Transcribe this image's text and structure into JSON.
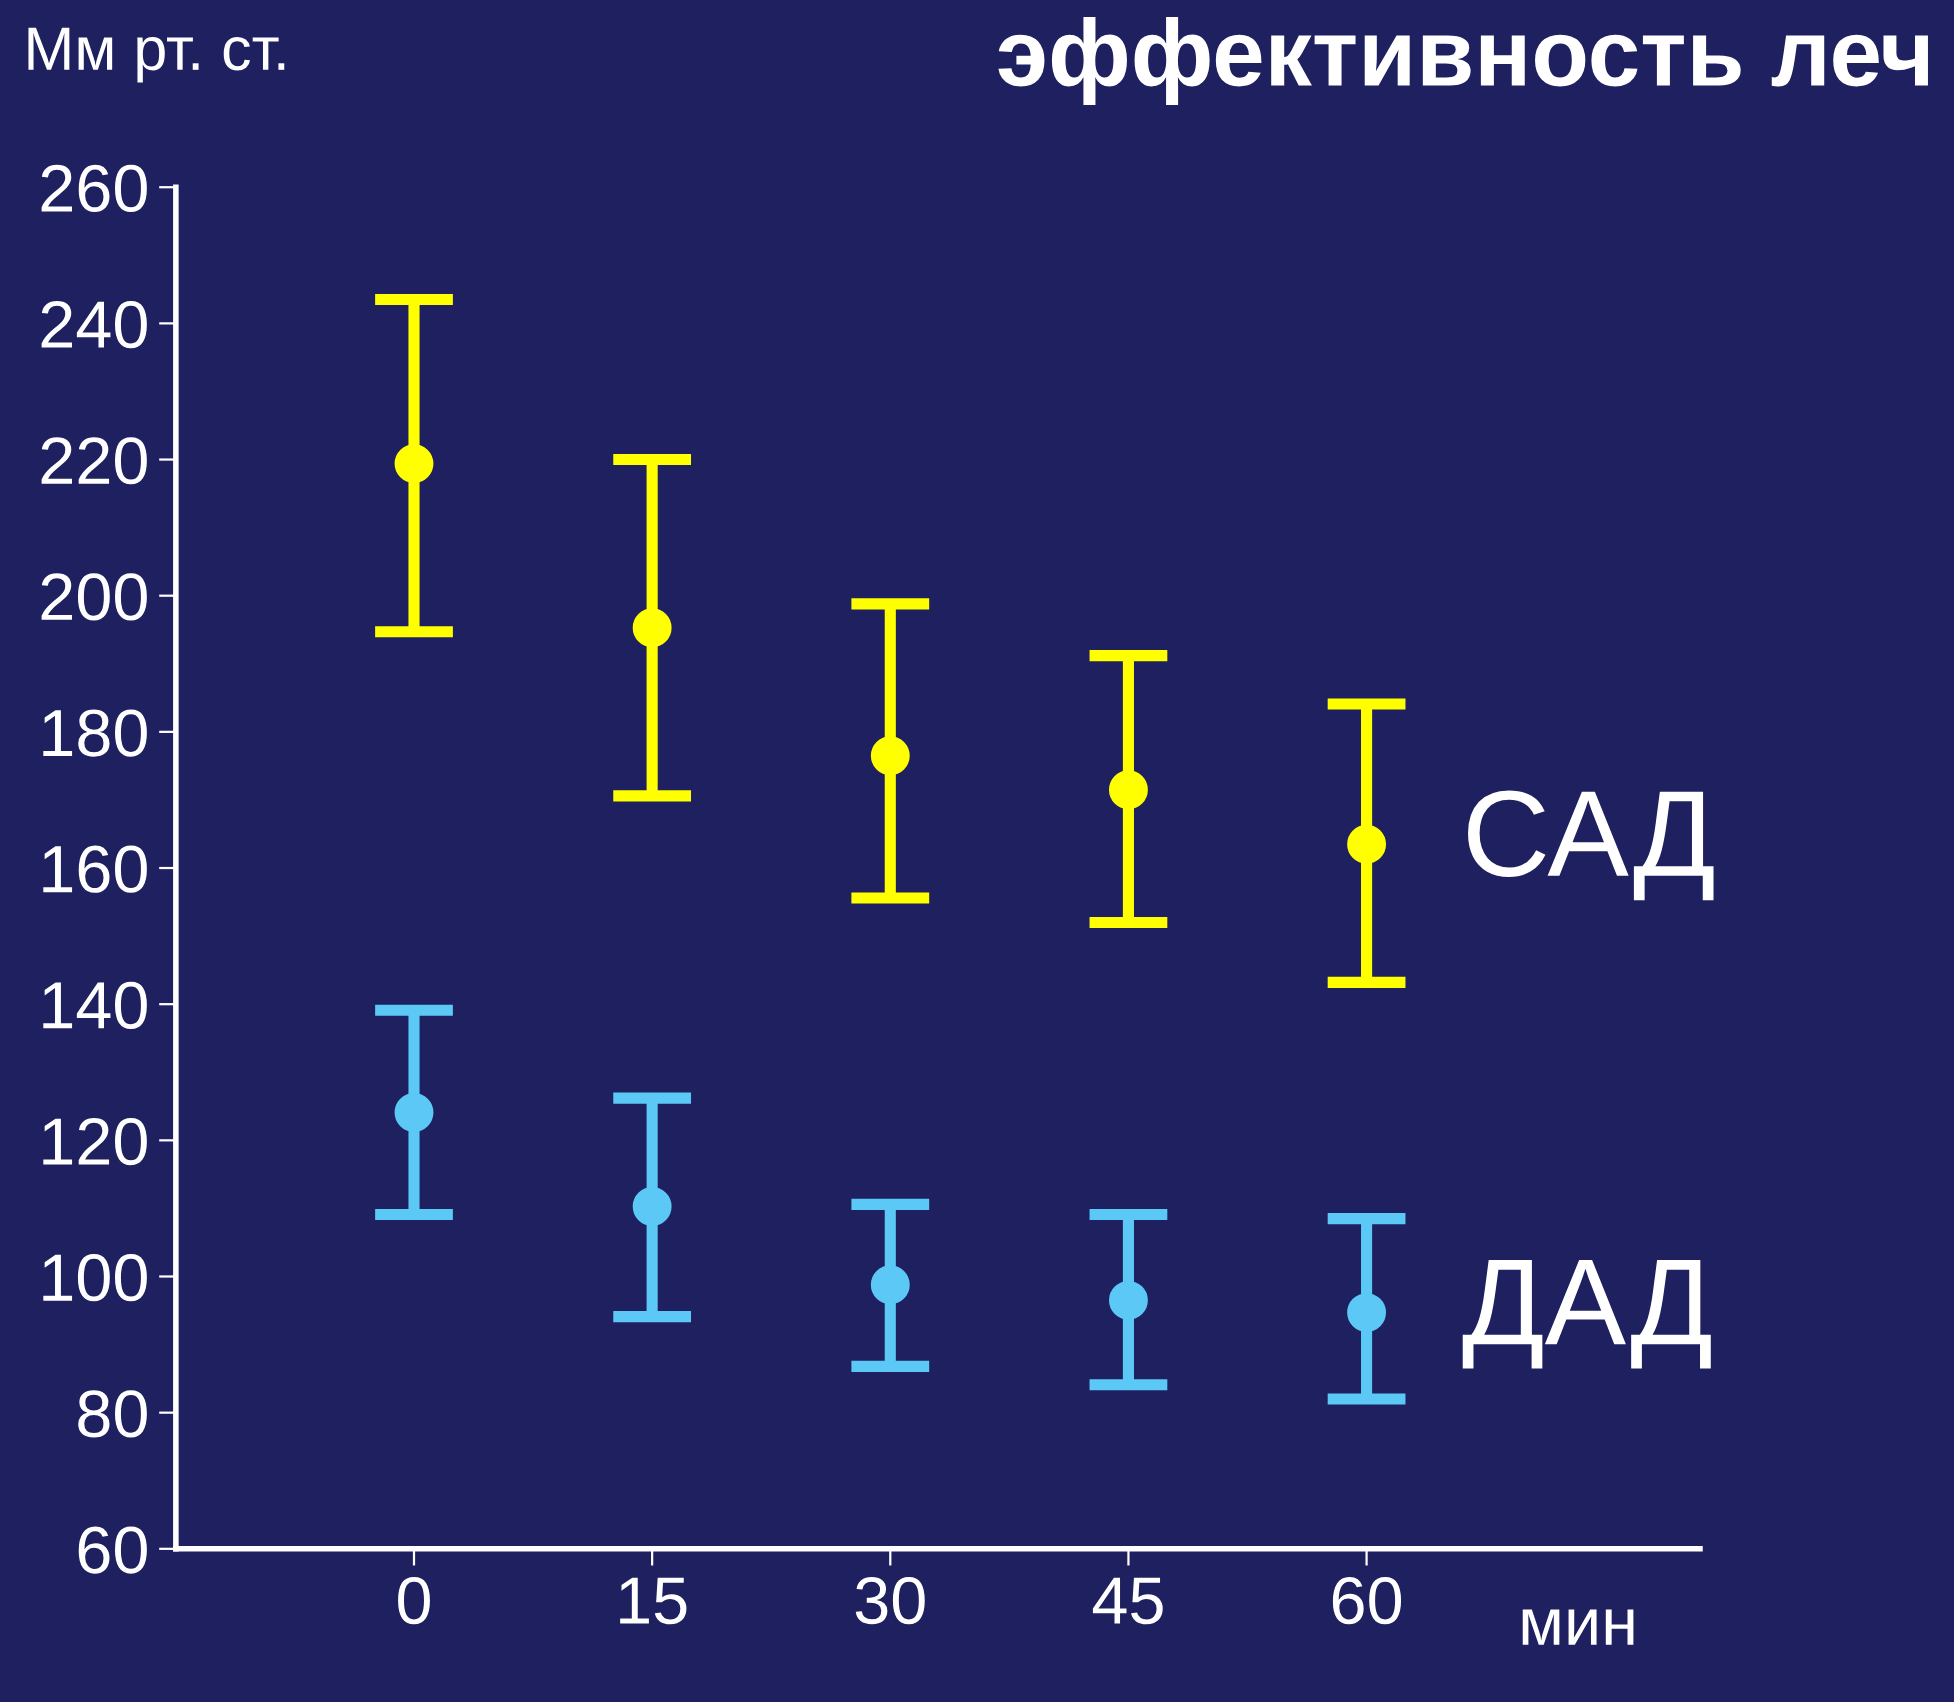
{
  "chart_data": {
    "type": "scatter",
    "title": "эффективность леч",
    "ylabel": "Мм рт. ст.",
    "xlabel": "мин",
    "categories": [
      "0",
      "15",
      "30",
      "45",
      "60"
    ],
    "series": [
      {
        "name": "САД",
        "color": "#ffff00",
        "values": [
          219.4,
          195.3,
          176.5,
          171.5,
          163.5
        ],
        "errors": [
          [
            194.7,
            243.5
          ],
          [
            170.6,
            220
          ],
          [
            155.6,
            198.8
          ],
          [
            152,
            191.2
          ],
          [
            143.2,
            184.1
          ]
        ]
      },
      {
        "name": "ДАД",
        "color": "#5bc8f5",
        "values": [
          124.1,
          110.3,
          98.8,
          96.5,
          94.7
        ],
        "errors": [
          [
            109.1,
            139.1
          ],
          [
            94.1,
            126.2
          ],
          [
            86.8,
            110.6
          ],
          [
            84.1,
            109.1
          ],
          [
            82,
            108.5
          ]
        ]
      }
    ],
    "ylim": [
      60,
      260
    ],
    "yticks": [
      60,
      80,
      100,
      120,
      140,
      160,
      180,
      200,
      220,
      240,
      260
    ],
    "marker": "circle",
    "grid": false,
    "legend": false
  }
}
